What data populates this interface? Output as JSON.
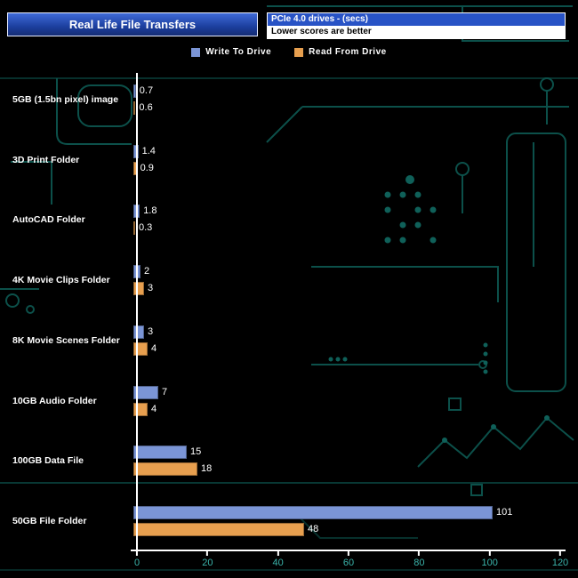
{
  "header": {
    "title": "Real Life File Transfers",
    "info_line1": "PCIe 4.0 drives - (secs)",
    "info_line2": "Lower scores are better"
  },
  "colors": {
    "background": "#000000",
    "circuit_trace": "#0e5a53",
    "axis": "#ffffff",
    "tick_text": "#3ab3aa",
    "title_bg": "#1c3f9e",
    "info_bg": "#2853c6",
    "write_bar": "#7b95d6",
    "read_bar": "#e79f4f"
  },
  "chart_data": {
    "type": "bar",
    "orientation": "horizontal",
    "title": "Real Life File Transfers",
    "subtitle": "PCIe 4.0 drives - (secs)",
    "note": "Lower scores are better",
    "units": "seconds",
    "categories": [
      "5GB (1.5bn pixel) image",
      "3D Print Folder",
      "AutoCAD Folder",
      "4K Movie Clips Folder",
      "8K Movie Scenes Folder",
      "10GB Audio Folder",
      "100GB Data File",
      "50GB File Folder"
    ],
    "series": [
      {
        "name": "Write To  Drive",
        "color": "#7b95d6",
        "values": [
          0.7,
          1.4,
          1.8,
          2,
          3,
          7,
          15,
          101
        ]
      },
      {
        "name": "Read From  Drive",
        "color": "#e79f4f",
        "values": [
          0.6,
          0.9,
          0.3,
          3,
          4,
          4,
          18,
          48
        ]
      }
    ],
    "xlabel": "",
    "ylabel": "",
    "xlim": [
      0,
      120
    ],
    "xticks": [
      0,
      20,
      40,
      60,
      80,
      100,
      120
    ],
    "grid": false,
    "legend_position": "top"
  }
}
